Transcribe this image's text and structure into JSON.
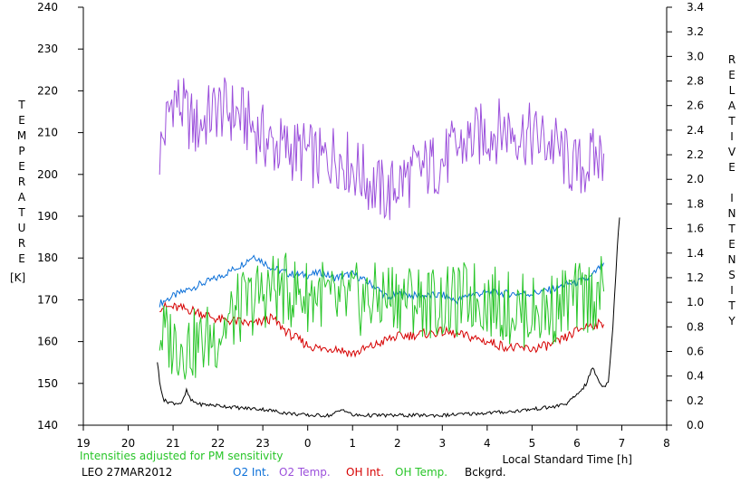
{
  "chart_data": {
    "type": "line",
    "left_axis": {
      "label": "TEMPERATURE",
      "unit": "[K]",
      "range": [
        140,
        240
      ],
      "ticks": [
        "140",
        "150",
        "160",
        "170",
        "180",
        "190",
        "200",
        "210",
        "220",
        "230",
        "240"
      ]
    },
    "right_axis": {
      "label": "RELATIVE INTENSITY",
      "range": [
        0.0,
        3.4
      ],
      "ticks": [
        "0.0",
        "0.2",
        "0.4",
        "0.6",
        "0.8",
        "1.0",
        "1.2",
        "1.4",
        "1.6",
        "1.8",
        "2.0",
        "2.2",
        "2.4",
        "2.6",
        "2.8",
        "3.0",
        "3.2",
        "3.4"
      ]
    },
    "x_axis": {
      "label": "Local Standard Time [h]",
      "range": [
        19,
        32
      ],
      "ticks": [
        "19",
        "20",
        "21",
        "22",
        "23",
        "0",
        "1",
        "2",
        "3",
        "4",
        "5",
        "6",
        "7",
        "8"
      ]
    },
    "grid": false,
    "note": "Intensities adjusted for PM sensitivity",
    "station": "LEO 27MAR2012",
    "series": [
      {
        "name": "O2 Int.",
        "color": "#0a6fd8",
        "axis": "right",
        "x": [
          20.7,
          21.0,
          21.5,
          22.0,
          22.5,
          22.8,
          23.2,
          23.6,
          24.0,
          24.3,
          24.6,
          25.0,
          25.5,
          25.8,
          26.0,
          26.5,
          27.0,
          27.3,
          27.6,
          28.0,
          28.5,
          29.0,
          29.5,
          29.8,
          30.0,
          30.3,
          30.6
        ],
        "y": [
          0.99,
          1.05,
          1.13,
          1.2,
          1.3,
          1.38,
          1.28,
          1.23,
          1.22,
          1.24,
          1.2,
          1.23,
          1.13,
          1.03,
          1.07,
          1.05,
          1.06,
          1.01,
          1.06,
          1.08,
          1.07,
          1.07,
          1.11,
          1.15,
          1.16,
          1.2,
          1.32
        ]
      },
      {
        "name": "O2 Temp.",
        "color": "#9b4fdb",
        "axis": "left",
        "x": [
          20.7,
          21.0,
          21.5,
          22.0,
          22.5,
          22.8,
          23.2,
          23.6,
          24.0,
          24.3,
          24.6,
          25.0,
          25.5,
          25.8,
          26.0,
          26.5,
          27.0,
          27.3,
          27.6,
          28.0,
          28.5,
          29.0,
          29.5,
          29.8,
          30.0,
          30.3,
          30.6
        ],
        "y": [
          205,
          219,
          211,
          216,
          214,
          211,
          207,
          206,
          205,
          203,
          205,
          202,
          197,
          195,
          198,
          201,
          203,
          206,
          208,
          210,
          211,
          209,
          207,
          203,
          201,
          203,
          205
        ]
      },
      {
        "name": "OH Int.",
        "color": "#d60000",
        "axis": "right",
        "x": [
          20.7,
          21.0,
          21.5,
          22.0,
          22.5,
          22.8,
          23.2,
          23.6,
          24.0,
          24.3,
          24.6,
          25.0,
          25.5,
          25.8,
          26.0,
          26.5,
          27.0,
          27.3,
          27.6,
          28.0,
          28.5,
          29.0,
          29.5,
          29.8,
          30.0,
          30.3,
          30.6
        ],
        "y": [
          0.96,
          0.96,
          0.93,
          0.86,
          0.84,
          0.82,
          0.87,
          0.74,
          0.65,
          0.62,
          0.63,
          0.58,
          0.65,
          0.7,
          0.72,
          0.74,
          0.76,
          0.74,
          0.72,
          0.68,
          0.63,
          0.62,
          0.66,
          0.72,
          0.77,
          0.82,
          0.82
        ]
      },
      {
        "name": "OH Temp.",
        "color": "#28c528",
        "axis": "left",
        "x": [
          20.7,
          21.0,
          21.5,
          22.0,
          22.5,
          22.8,
          23.2,
          23.6,
          24.0,
          24.3,
          24.6,
          25.0,
          25.5,
          25.8,
          26.0,
          26.5,
          27.0,
          27.3,
          27.6,
          28.0,
          28.5,
          29.0,
          29.5,
          29.8,
          30.0,
          30.3,
          30.6
        ],
        "y": [
          162,
          160,
          159,
          162,
          168,
          170,
          173,
          172,
          171,
          172,
          168,
          170,
          170,
          171,
          171,
          170,
          169,
          169,
          171,
          170,
          168,
          167,
          168,
          170,
          170,
          171,
          172
        ]
      },
      {
        "name": "Bckgrd.",
        "color": "#000000",
        "axis": "right",
        "x": [
          20.65,
          20.7,
          20.8,
          21.0,
          21.2,
          21.3,
          21.4,
          21.6,
          22.0,
          22.5,
          23.0,
          23.5,
          24.0,
          24.5,
          24.8,
          25.0,
          25.5,
          26.0,
          26.5,
          27.0,
          27.5,
          28.0,
          28.5,
          29.0,
          29.5,
          29.8,
          30.0,
          30.2,
          30.35,
          30.5,
          30.6,
          30.7,
          30.8,
          30.9,
          30.95
        ],
        "y": [
          0.52,
          0.35,
          0.2,
          0.18,
          0.18,
          0.28,
          0.2,
          0.17,
          0.16,
          0.14,
          0.13,
          0.1,
          0.08,
          0.08,
          0.13,
          0.08,
          0.08,
          0.08,
          0.08,
          0.08,
          0.09,
          0.1,
          0.11,
          0.13,
          0.15,
          0.18,
          0.25,
          0.33,
          0.47,
          0.35,
          0.31,
          0.36,
          0.8,
          1.45,
          1.69
        ]
      }
    ]
  }
}
